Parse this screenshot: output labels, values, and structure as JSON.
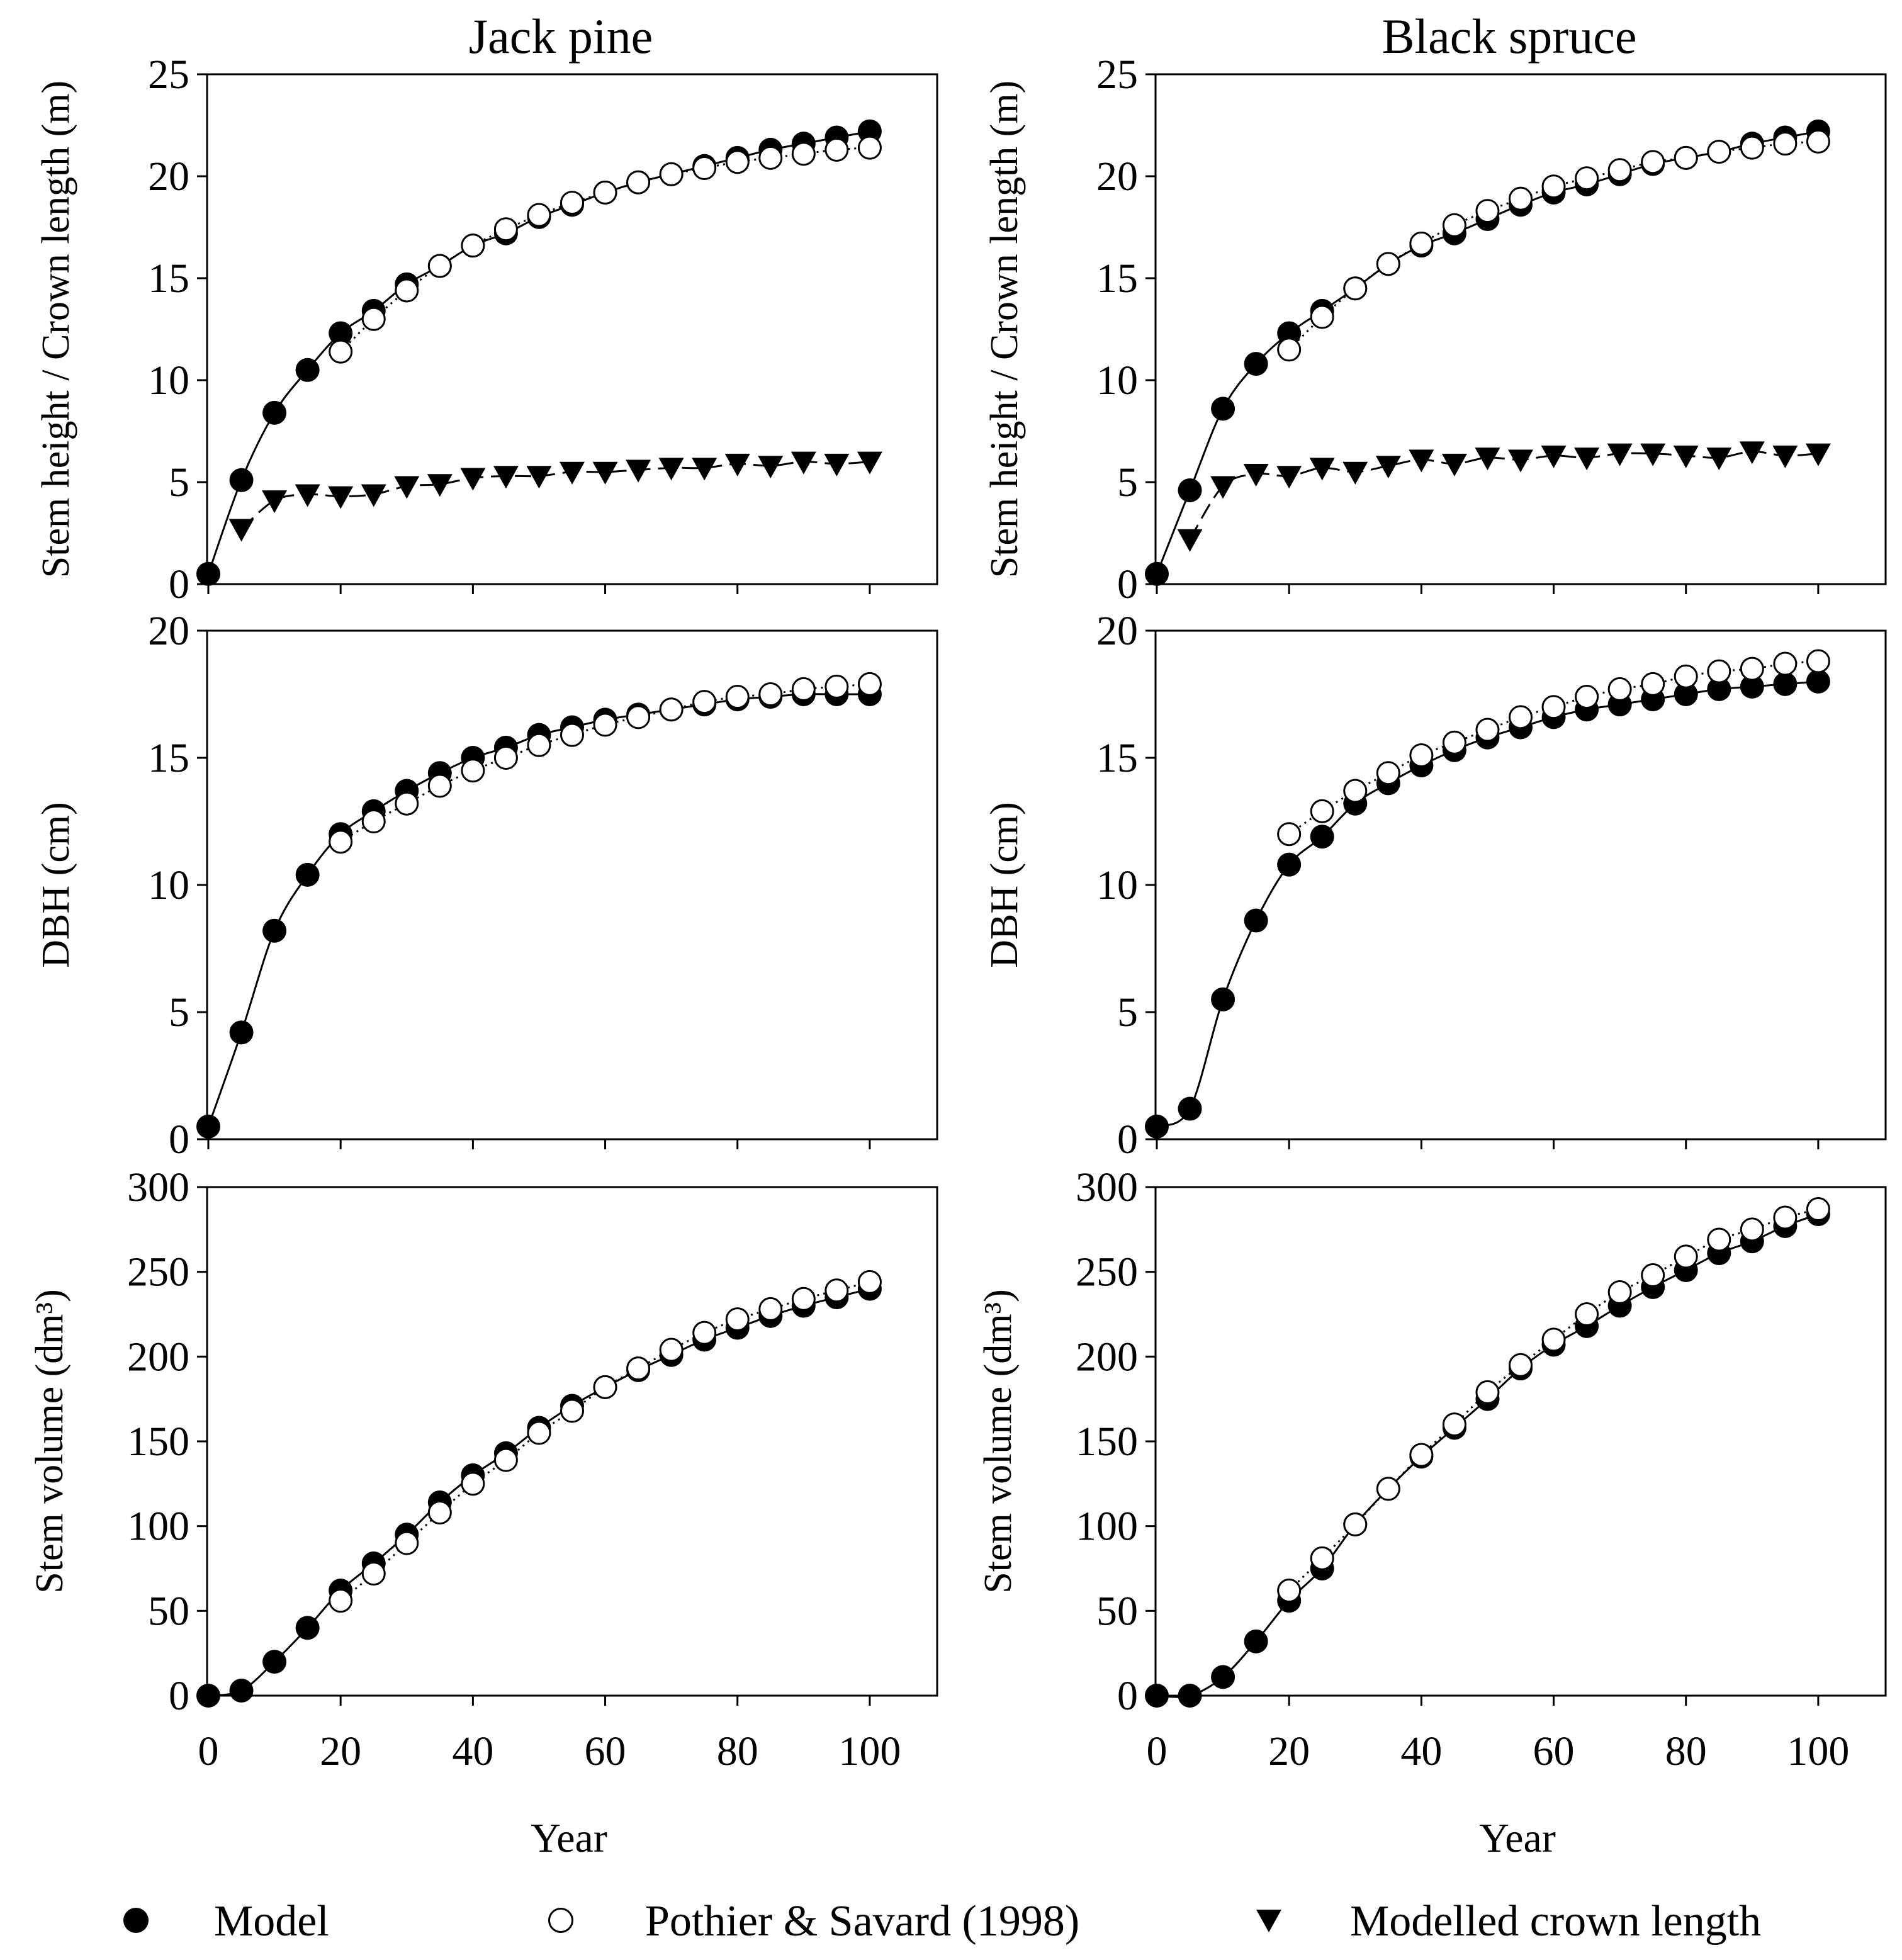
{
  "legend": {
    "model": "Model",
    "pothier": "Pothier & Savard (1998)",
    "crown": "Modelled crown length"
  },
  "columns": {
    "jack_pine": "Jack pine",
    "black_spruce": "Black spruce"
  },
  "chart_data": [
    {
      "id": "jp-height",
      "type": "line+scatter",
      "column": "Jack pine",
      "row": 0,
      "title": "Jack pine",
      "xlabel": "",
      "ylabel": "Stem height / Crown length (m)",
      "xlim": [
        0,
        110
      ],
      "ylim": [
        0,
        25
      ],
      "yticks": [
        0,
        5,
        10,
        15,
        20,
        25
      ],
      "xticks": [
        0,
        20,
        40,
        60,
        80,
        100
      ],
      "x": [
        0,
        5,
        10,
        15,
        20,
        25,
        30,
        35,
        40,
        45,
        50,
        55,
        60,
        65,
        70,
        75,
        80,
        85,
        90,
        95,
        100
      ],
      "series": [
        {
          "name": "Model",
          "marker": "filled-circle",
          "line": "solid",
          "x": [
            0,
            5,
            10,
            15,
            20,
            25,
            30,
            35,
            40,
            45,
            50,
            55,
            60,
            65,
            70,
            75,
            80,
            85,
            90,
            95,
            100
          ],
          "values": [
            0.5,
            5.1,
            8.4,
            10.5,
            12.3,
            13.4,
            14.7,
            15.6,
            16.6,
            17.2,
            18.0,
            18.6,
            19.2,
            19.7,
            20.1,
            20.5,
            20.9,
            21.3,
            21.6,
            21.9,
            22.2
          ]
        },
        {
          "name": "Pothier & Savard (1998)",
          "marker": "open-circle",
          "line": "dotted",
          "x": [
            20,
            25,
            30,
            35,
            40,
            45,
            50,
            55,
            60,
            65,
            70,
            75,
            80,
            85,
            90,
            95,
            100
          ],
          "values": [
            11.4,
            13.0,
            14.4,
            15.6,
            16.6,
            17.4,
            18.1,
            18.7,
            19.2,
            19.7,
            20.1,
            20.4,
            20.7,
            20.9,
            21.1,
            21.3,
            21.4
          ]
        },
        {
          "name": "Modelled crown length",
          "marker": "filled-triangle-down",
          "line": "dashed",
          "x": [
            5,
            10,
            15,
            20,
            25,
            30,
            35,
            40,
            45,
            50,
            55,
            60,
            65,
            70,
            75,
            80,
            85,
            90,
            95,
            100
          ],
          "values": [
            2.7,
            4.1,
            4.4,
            4.3,
            4.4,
            4.8,
            4.9,
            5.2,
            5.3,
            5.3,
            5.5,
            5.5,
            5.6,
            5.7,
            5.7,
            5.9,
            5.8,
            6.0,
            5.9,
            6.0
          ]
        }
      ]
    },
    {
      "id": "bs-height",
      "type": "line+scatter",
      "column": "Black spruce",
      "row": 0,
      "title": "Black spruce",
      "xlabel": "",
      "ylabel": "Stem height / Crown length (m)",
      "xlim": [
        0,
        110
      ],
      "ylim": [
        0,
        25
      ],
      "yticks": [
        0,
        5,
        10,
        15,
        20,
        25
      ],
      "xticks": [
        0,
        20,
        40,
        60,
        80,
        100
      ],
      "series": [
        {
          "name": "Model",
          "marker": "filled-circle",
          "line": "solid",
          "x": [
            0,
            5,
            10,
            15,
            20,
            25,
            30,
            35,
            40,
            45,
            50,
            55,
            60,
            65,
            70,
            75,
            80,
            85,
            90,
            95,
            100
          ],
          "values": [
            0.5,
            4.6,
            8.6,
            10.8,
            12.3,
            13.4,
            14.5,
            15.7,
            16.6,
            17.2,
            17.9,
            18.6,
            19.2,
            19.6,
            20.1,
            20.6,
            20.9,
            21.2,
            21.6,
            21.9,
            22.2
          ]
        },
        {
          "name": "Pothier & Savard (1998)",
          "marker": "open-circle",
          "line": "dotted",
          "x": [
            20,
            25,
            30,
            35,
            40,
            45,
            50,
            55,
            60,
            65,
            70,
            75,
            80,
            85,
            90,
            95,
            100
          ],
          "values": [
            11.5,
            13.1,
            14.5,
            15.7,
            16.7,
            17.6,
            18.3,
            18.9,
            19.5,
            19.9,
            20.3,
            20.7,
            20.9,
            21.2,
            21.4,
            21.6,
            21.7
          ]
        },
        {
          "name": "Modelled crown length",
          "marker": "filled-triangle-down",
          "line": "dashed",
          "x": [
            5,
            10,
            15,
            20,
            25,
            30,
            35,
            40,
            45,
            50,
            55,
            60,
            65,
            70,
            75,
            80,
            85,
            90,
            95,
            100
          ],
          "values": [
            2.2,
            4.8,
            5.4,
            5.3,
            5.7,
            5.5,
            5.8,
            6.1,
            5.9,
            6.2,
            6.1,
            6.3,
            6.2,
            6.4,
            6.4,
            6.3,
            6.2,
            6.5,
            6.3,
            6.4
          ]
        }
      ]
    },
    {
      "id": "jp-dbh",
      "type": "line+scatter",
      "column": "Jack pine",
      "row": 1,
      "title": "",
      "xlabel": "",
      "ylabel": "DBH (cm)",
      "xlim": [
        0,
        110
      ],
      "ylim": [
        0,
        20
      ],
      "yticks": [
        0,
        5,
        10,
        15,
        20
      ],
      "xticks": [
        0,
        20,
        40,
        60,
        80,
        100
      ],
      "series": [
        {
          "name": "Model",
          "marker": "filled-circle",
          "line": "solid",
          "x": [
            0,
            5,
            10,
            15,
            20,
            25,
            30,
            35,
            40,
            45,
            50,
            55,
            60,
            65,
            70,
            75,
            80,
            85,
            90,
            95,
            100
          ],
          "values": [
            0.5,
            4.2,
            8.2,
            10.4,
            12.0,
            12.9,
            13.7,
            14.4,
            15.0,
            15.4,
            15.9,
            16.2,
            16.5,
            16.7,
            16.9,
            17.1,
            17.3,
            17.4,
            17.5,
            17.5,
            17.5
          ]
        },
        {
          "name": "Pothier & Savard (1998)",
          "marker": "open-circle",
          "line": "dotted",
          "x": [
            20,
            25,
            30,
            35,
            40,
            45,
            50,
            55,
            60,
            65,
            70,
            75,
            80,
            85,
            90,
            95,
            100
          ],
          "values": [
            11.7,
            12.5,
            13.2,
            13.9,
            14.5,
            15.0,
            15.5,
            15.9,
            16.3,
            16.6,
            16.9,
            17.2,
            17.4,
            17.5,
            17.7,
            17.8,
            17.9
          ]
        }
      ]
    },
    {
      "id": "bs-dbh",
      "type": "line+scatter",
      "column": "Black spruce",
      "row": 1,
      "title": "",
      "xlabel": "",
      "ylabel": "DBH (cm)",
      "xlim": [
        0,
        110
      ],
      "ylim": [
        0,
        20
      ],
      "yticks": [
        0,
        5,
        10,
        15,
        20
      ],
      "xticks": [
        0,
        20,
        40,
        60,
        80,
        100
      ],
      "series": [
        {
          "name": "Model",
          "marker": "filled-circle",
          "line": "solid",
          "x": [
            0,
            5,
            10,
            15,
            20,
            25,
            30,
            35,
            40,
            45,
            50,
            55,
            60,
            65,
            70,
            75,
            80,
            85,
            90,
            95,
            100
          ],
          "values": [
            0.5,
            1.2,
            5.5,
            8.6,
            10.8,
            11.9,
            13.2,
            14.0,
            14.7,
            15.3,
            15.8,
            16.2,
            16.6,
            16.9,
            17.1,
            17.3,
            17.5,
            17.7,
            17.8,
            17.9,
            18.0
          ]
        },
        {
          "name": "Pothier & Savard (1998)",
          "marker": "open-circle",
          "line": "dotted",
          "x": [
            20,
            25,
            30,
            35,
            40,
            45,
            50,
            55,
            60,
            65,
            70,
            75,
            80,
            85,
            90,
            95,
            100
          ],
          "values": [
            12.0,
            12.9,
            13.7,
            14.4,
            15.1,
            15.6,
            16.1,
            16.6,
            17.0,
            17.4,
            17.7,
            17.9,
            18.2,
            18.4,
            18.5,
            18.7,
            18.8
          ]
        }
      ]
    },
    {
      "id": "jp-vol",
      "type": "line+scatter",
      "column": "Jack pine",
      "row": 2,
      "title": "",
      "xlabel": "Year",
      "ylabel": "Stem volume (dm³)",
      "xlim": [
        0,
        110
      ],
      "ylim": [
        0,
        300
      ],
      "yticks": [
        0,
        50,
        100,
        150,
        200,
        250,
        300
      ],
      "xticks": [
        0,
        20,
        40,
        60,
        80,
        100
      ],
      "series": [
        {
          "name": "Model",
          "marker": "filled-circle",
          "line": "solid",
          "x": [
            0,
            5,
            10,
            15,
            20,
            25,
            30,
            35,
            40,
            45,
            50,
            55,
            60,
            65,
            70,
            75,
            80,
            85,
            90,
            95,
            100
          ],
          "values": [
            0,
            3,
            20,
            40,
            62,
            78,
            95,
            114,
            130,
            143,
            158,
            171,
            182,
            192,
            201,
            210,
            217,
            224,
            230,
            235,
            240
          ]
        },
        {
          "name": "Pothier & Savard (1998)",
          "marker": "open-circle",
          "line": "dotted",
          "x": [
            20,
            25,
            30,
            35,
            40,
            45,
            50,
            55,
            60,
            65,
            70,
            75,
            80,
            85,
            90,
            95,
            100
          ],
          "values": [
            56,
            72,
            90,
            108,
            125,
            139,
            155,
            168,
            182,
            193,
            204,
            214,
            222,
            228,
            234,
            239,
            244
          ]
        }
      ]
    },
    {
      "id": "bs-vol",
      "type": "line+scatter",
      "column": "Black spruce",
      "row": 2,
      "title": "",
      "xlabel": "Year",
      "ylabel": "Stem volume (dm³)",
      "xlim": [
        0,
        110
      ],
      "ylim": [
        0,
        300
      ],
      "yticks": [
        0,
        50,
        100,
        150,
        200,
        250,
        300
      ],
      "xticks": [
        0,
        20,
        40,
        60,
        80,
        100
      ],
      "series": [
        {
          "name": "Model",
          "marker": "filled-circle",
          "line": "solid",
          "x": [
            0,
            5,
            10,
            15,
            20,
            25,
            30,
            35,
            40,
            45,
            50,
            55,
            60,
            65,
            70,
            75,
            80,
            85,
            90,
            95,
            100
          ],
          "values": [
            0,
            0,
            11,
            32,
            56,
            75,
            101,
            122,
            141,
            158,
            175,
            193,
            207,
            218,
            230,
            241,
            251,
            261,
            268,
            277,
            284
          ]
        },
        {
          "name": "Pothier & Savard (1998)",
          "marker": "open-circle",
          "line": "dotted",
          "x": [
            20,
            25,
            30,
            35,
            40,
            45,
            50,
            55,
            60,
            65,
            70,
            75,
            80,
            85,
            90,
            95,
            100
          ],
          "values": [
            62,
            81,
            101,
            122,
            142,
            160,
            179,
            195,
            210,
            225,
            238,
            248,
            259,
            269,
            275,
            282,
            287
          ]
        }
      ]
    }
  ]
}
